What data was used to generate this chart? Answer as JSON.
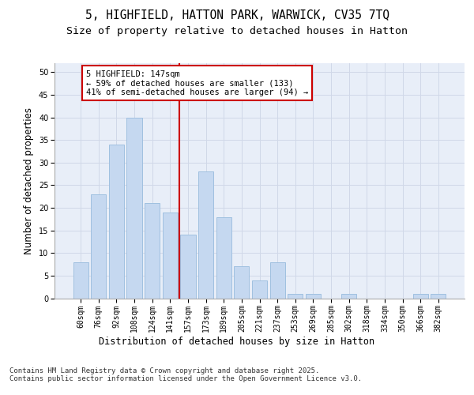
{
  "title_line1": "5, HIGHFIELD, HATTON PARK, WARWICK, CV35 7TQ",
  "title_line2": "Size of property relative to detached houses in Hatton",
  "xlabel": "Distribution of detached houses by size in Hatton",
  "ylabel": "Number of detached properties",
  "categories": [
    "60sqm",
    "76sqm",
    "92sqm",
    "108sqm",
    "124sqm",
    "141sqm",
    "157sqm",
    "173sqm",
    "189sqm",
    "205sqm",
    "221sqm",
    "237sqm",
    "253sqm",
    "269sqm",
    "285sqm",
    "302sqm",
    "318sqm",
    "334sqm",
    "350sqm",
    "366sqm",
    "382sqm"
  ],
  "values": [
    8,
    23,
    34,
    40,
    21,
    19,
    14,
    28,
    18,
    7,
    4,
    8,
    1,
    1,
    0,
    1,
    0,
    0,
    0,
    1,
    1
  ],
  "bar_color": "#c5d8f0",
  "bar_edge_color": "#a0c0e0",
  "grid_color": "#d0d8e8",
  "background_color": "#e8eef8",
  "vline_color": "#cc0000",
  "annotation_text": "5 HIGHFIELD: 147sqm\n← 59% of detached houses are smaller (133)\n41% of semi-detached houses are larger (94) →",
  "annotation_box_color": "#ffffff",
  "annotation_box_edge": "#cc0000",
  "ylim": [
    0,
    52
  ],
  "yticks": [
    0,
    5,
    10,
    15,
    20,
    25,
    30,
    35,
    40,
    45,
    50
  ],
  "footer": "Contains HM Land Registry data © Crown copyright and database right 2025.\nContains public sector information licensed under the Open Government Licence v3.0.",
  "title_fontsize": 10.5,
  "subtitle_fontsize": 9.5,
  "axis_label_fontsize": 8.5,
  "tick_fontsize": 7,
  "annotation_fontsize": 7.5,
  "footer_fontsize": 6.5
}
